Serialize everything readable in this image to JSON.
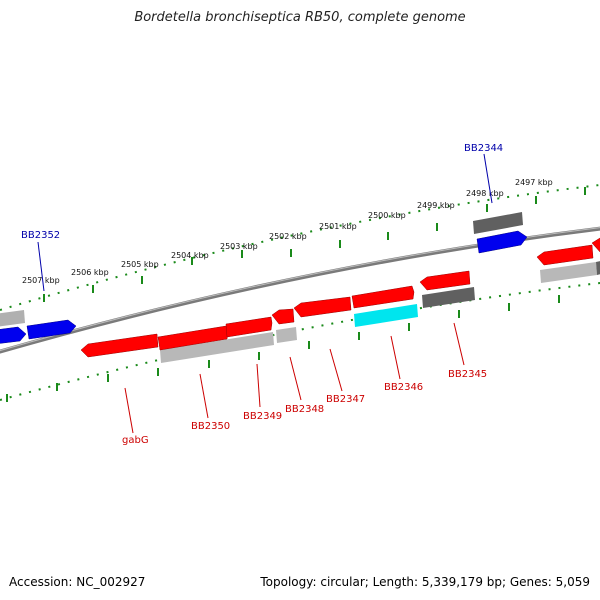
{
  "header": {
    "title": "Bordetella bronchiseptica RB50, complete genome"
  },
  "footer": {
    "accession": "Accession: NC_002927",
    "summary": "Topology: circular; Length: 5,339,179 bp; Genes: 5,059"
  },
  "ruler_labels": [
    "2507 kbp",
    "2506 kbp",
    "2505 kbp",
    "2504 kbp",
    "2503 kbp",
    "2502 kbp",
    "2501 kbp",
    "2500 kbp",
    "2499 kbp",
    "2498 kbp",
    "2497 kbp"
  ],
  "gene_labels": [
    {
      "text": "BB2352",
      "color": "#0000aa"
    },
    {
      "text": "BB2344",
      "color": "#0000aa"
    },
    {
      "text": "gabG",
      "color": "#cc0000"
    },
    {
      "text": "BB2350",
      "color": "#cc0000"
    },
    {
      "text": "BB2349",
      "color": "#cc0000"
    },
    {
      "text": "BB2348",
      "color": "#cc0000"
    },
    {
      "text": "BB2347",
      "color": "#cc0000"
    },
    {
      "text": "BB2346",
      "color": "#cc0000"
    },
    {
      "text": "BB2345",
      "color": "#cc0000"
    }
  ],
  "colors": {
    "backbone": "#808080",
    "ruler": "#1a8a1a",
    "forward_cds": "#ff0000",
    "reverse_cds": "#0000ff",
    "feature_grey": "#b8b8b8",
    "feature_dark": "#606060",
    "feature_cyan": "#00e5ee"
  }
}
